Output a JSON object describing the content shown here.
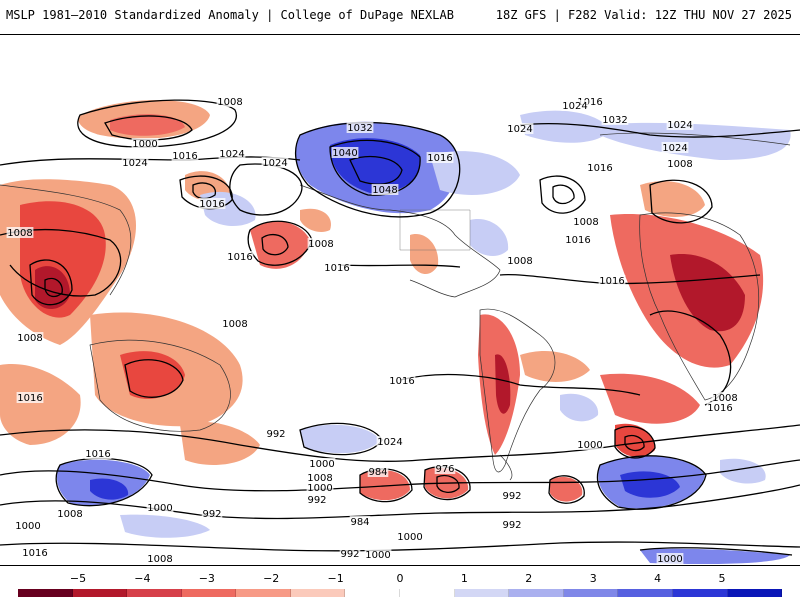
{
  "header": {
    "title_left": "MSLP 1981–2010 Standardized Anomaly | College of DuPage NEXLAB",
    "title_right": "18Z GFS | F282 Valid: 12Z THU NOV 27 2025"
  },
  "map": {
    "variable": "MSLP standardized anomaly",
    "contour_labels": [
      "1008",
      "1000",
      "1024",
      "1016",
      "1024",
      "1024",
      "1016",
      "1008",
      "1016",
      "1016",
      "1016",
      "1016",
      "1032",
      "1040",
      "1048",
      "1024",
      "1024",
      "1032",
      "1024",
      "1016",
      "1008",
      "1024",
      "1016",
      "1008",
      "1016",
      "1008",
      "1008",
      "1008",
      "1008",
      "1016",
      "1016",
      "1024",
      "1016",
      "1008",
      "1000",
      "992",
      "1000",
      "992",
      "1016",
      "1008",
      "1000",
      "984",
      "976",
      "992",
      "1000",
      "992",
      "1000",
      "1008",
      "1000",
      "992",
      "1016",
      "1008",
      "984",
      "992",
      "1000",
      "1000"
    ],
    "anomaly_colors": {
      "strong_negative": "#b2182b",
      "moderate_negative": "#e8473f",
      "weak_negative": "#f4a582",
      "weak_positive": "#c7cdf5",
      "moderate_positive": "#7d86ec",
      "strong_positive": "#2c36d6"
    }
  },
  "colorbar": {
    "labels": [
      "−5",
      "−4",
      "−3",
      "−2",
      "−1",
      "0",
      "1",
      "2",
      "3",
      "4",
      "5"
    ],
    "colors": [
      "#67001f",
      "#b2182b",
      "#d6404a",
      "#ee6a60",
      "#f79a86",
      "#fbcabb",
      "#ffffff",
      "#ffffff",
      "#d3d7f5",
      "#aab0ef",
      "#7f87e8",
      "#5660e0",
      "#2c36d6",
      "#0a16b8"
    ]
  }
}
